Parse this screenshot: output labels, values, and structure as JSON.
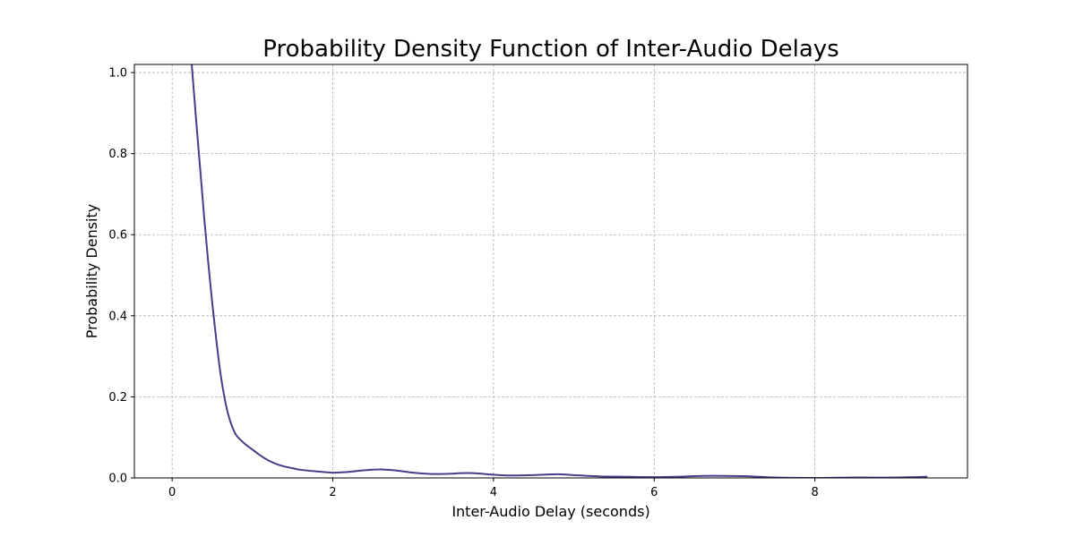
{
  "chart_data": {
    "type": "line",
    "title": "Probability Density Function of Inter-Audio Delays",
    "xlabel": "Inter-Audio Delay (seconds)",
    "ylabel": "Probability Density",
    "xlim": [
      -0.47,
      9.9
    ],
    "ylim": [
      0,
      1.02
    ],
    "grid": true,
    "x_ticks": [
      0,
      2,
      4,
      6,
      8
    ],
    "x_tick_labels": [
      "0",
      "2",
      "4",
      "6",
      "8"
    ],
    "y_ticks": [
      0,
      0.2,
      0.4,
      0.6,
      0.8,
      1.0
    ],
    "y_tick_labels": [
      "0.0",
      "0.2",
      "0.4",
      "0.6",
      "0.8",
      "1.0"
    ],
    "series": [
      {
        "color": "#483d8b",
        "x": [
          0.24,
          0.3,
          0.35,
          0.4,
          0.45,
          0.5,
          0.55,
          0.6,
          0.65,
          0.7,
          0.75,
          0.8,
          0.9,
          1.0,
          1.1,
          1.2,
          1.3,
          1.4,
          1.5,
          1.6,
          1.8,
          2.0,
          2.2,
          2.4,
          2.6,
          2.8,
          3.0,
          3.2,
          3.4,
          3.7,
          4.0,
          4.2,
          4.5,
          4.8,
          5.0,
          5.3,
          5.6,
          6.0,
          6.3,
          6.6,
          6.9,
          7.2,
          7.5,
          8.0,
          8.5,
          9.0,
          9.4
        ],
        "y": [
          1.03,
          0.88,
          0.76,
          0.64,
          0.53,
          0.43,
          0.34,
          0.26,
          0.2,
          0.155,
          0.125,
          0.105,
          0.085,
          0.07,
          0.055,
          0.043,
          0.034,
          0.028,
          0.024,
          0.02,
          0.016,
          0.013,
          0.015,
          0.019,
          0.021,
          0.018,
          0.013,
          0.01,
          0.01,
          0.012,
          0.008,
          0.006,
          0.007,
          0.009,
          0.007,
          0.004,
          0.003,
          0.002,
          0.003,
          0.005,
          0.005,
          0.004,
          0.001,
          0.0,
          0.001,
          0.001,
          0.003
        ]
      }
    ]
  }
}
